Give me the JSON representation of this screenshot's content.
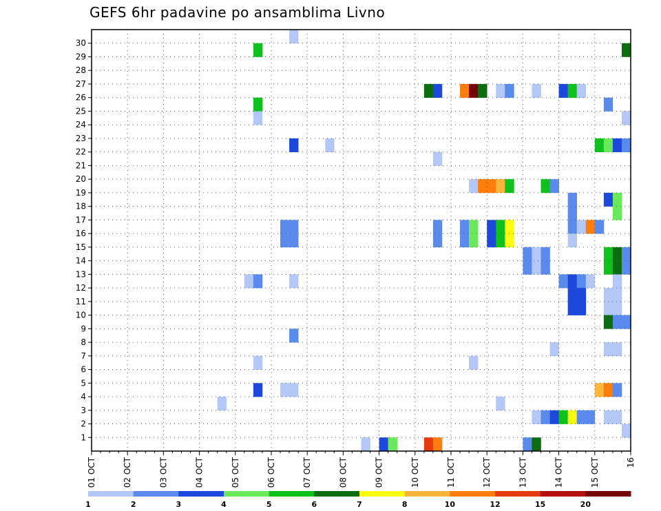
{
  "chart_data": {
    "type": "heatmap",
    "title": "GEFS 6hr padavine po ansamblima Livno",
    "x_tick_labels": [
      "01 OCT",
      "02 OCT",
      "03 OCT",
      "04 OCT",
      "05 OCT",
      "06 OCT",
      "07 OCT",
      "08 OCT",
      "09 OCT",
      "10 OCT",
      "11 OCT",
      "12 OCT",
      "13 OCT",
      "14 OCT",
      "15 OCT",
      "16"
    ],
    "y_tick_labels": [
      "1",
      "2",
      "3",
      "4",
      "5",
      "6",
      "7",
      "8",
      "9",
      "10",
      "11",
      "12",
      "13",
      "14",
      "15",
      "16",
      "17",
      "18",
      "19",
      "20",
      "21",
      "22",
      "23",
      "24",
      "25",
      "26",
      "27",
      "28",
      "29",
      "30"
    ],
    "time_steps": 60,
    "members": 31,
    "grid": true,
    "colorbar": {
      "tick_labels": [
        "1",
        "2",
        "3",
        "4",
        "5",
        "6",
        "7",
        "8",
        "10",
        "12",
        "15",
        "20"
      ],
      "colors": [
        "#b4c8f8",
        "#5a8aec",
        "#1c48dc",
        "#6ce85c",
        "#10c01c",
        "#0c6c10",
        "#fcfc10",
        "#fcb43c",
        "#fc7c0c",
        "#e43c0c",
        "#b41010",
        "#740404"
      ]
    },
    "cells": [
      [
        30,
        22,
        0
      ],
      [
        29,
        18,
        4
      ],
      [
        29,
        59,
        5
      ],
      [
        26,
        37,
        5
      ],
      [
        26,
        38,
        2
      ],
      [
        26,
        41,
        8
      ],
      [
        26,
        42,
        11
      ],
      [
        26,
        43,
        5
      ],
      [
        26,
        45,
        0
      ],
      [
        26,
        46,
        1
      ],
      [
        26,
        49,
        0
      ],
      [
        26,
        52,
        2
      ],
      [
        26,
        53,
        4
      ],
      [
        26,
        54,
        0
      ],
      [
        25,
        18,
        4
      ],
      [
        25,
        57,
        1
      ],
      [
        24,
        18,
        0
      ],
      [
        24,
        59,
        0
      ],
      [
        22,
        22,
        2
      ],
      [
        22,
        26,
        0
      ],
      [
        22,
        56,
        4
      ],
      [
        22,
        57,
        3
      ],
      [
        22,
        58,
        2
      ],
      [
        22,
        59,
        1
      ],
      [
        21,
        38,
        0
      ],
      [
        19,
        42,
        0
      ],
      [
        19,
        43,
        8
      ],
      [
        19,
        44,
        8
      ],
      [
        19,
        45,
        7
      ],
      [
        19,
        46,
        4
      ],
      [
        19,
        50,
        4
      ],
      [
        19,
        51,
        1
      ],
      [
        18,
        53,
        1
      ],
      [
        18,
        57,
        2
      ],
      [
        18,
        58,
        3
      ],
      [
        17,
        53,
        1
      ],
      [
        17,
        58,
        3
      ],
      [
        16,
        53,
        1
      ],
      [
        16,
        54,
        0
      ],
      [
        16,
        55,
        8
      ],
      [
        16,
        56,
        1
      ],
      [
        16,
        21,
        1
      ],
      [
        16,
        22,
        1
      ],
      [
        16,
        38,
        1
      ],
      [
        16,
        41,
        1
      ],
      [
        16,
        42,
        3
      ],
      [
        16,
        44,
        2
      ],
      [
        16,
        45,
        4
      ],
      [
        16,
        46,
        6
      ],
      [
        15,
        21,
        1
      ],
      [
        15,
        22,
        1
      ],
      [
        15,
        38,
        1
      ],
      [
        15,
        41,
        1
      ],
      [
        15,
        42,
        3
      ],
      [
        15,
        44,
        2
      ],
      [
        15,
        45,
        4
      ],
      [
        15,
        46,
        6
      ],
      [
        15,
        53,
        0
      ],
      [
        14,
        48,
        1
      ],
      [
        14,
        49,
        0
      ],
      [
        14,
        50,
        1
      ],
      [
        14,
        57,
        4
      ],
      [
        14,
        58,
        5
      ],
      [
        14,
        59,
        1
      ],
      [
        13,
        48,
        1
      ],
      [
        13,
        49,
        0
      ],
      [
        13,
        50,
        1
      ],
      [
        13,
        57,
        4
      ],
      [
        13,
        58,
        5
      ],
      [
        13,
        59,
        1
      ],
      [
        12,
        17,
        0
      ],
      [
        12,
        18,
        1
      ],
      [
        12,
        22,
        0
      ],
      [
        12,
        52,
        1
      ],
      [
        12,
        53,
        2
      ],
      [
        12,
        54,
        1
      ],
      [
        12,
        55,
        0
      ],
      [
        12,
        58,
        0
      ],
      [
        11,
        53,
        2
      ],
      [
        11,
        54,
        2
      ],
      [
        11,
        57,
        0
      ],
      [
        11,
        58,
        0
      ],
      [
        10,
        53,
        2
      ],
      [
        10,
        54,
        2
      ],
      [
        10,
        57,
        0
      ],
      [
        10,
        58,
        0
      ],
      [
        9,
        57,
        5
      ],
      [
        9,
        58,
        1
      ],
      [
        9,
        59,
        1
      ],
      [
        8,
        22,
        1
      ],
      [
        7,
        51,
        0
      ],
      [
        7,
        57,
        0
      ],
      [
        7,
        58,
        0
      ],
      [
        6,
        18,
        0
      ],
      [
        6,
        42,
        0
      ],
      [
        4,
        18,
        2
      ],
      [
        4,
        21,
        0
      ],
      [
        4,
        22,
        0
      ],
      [
        4,
        56,
        7
      ],
      [
        4,
        57,
        8
      ],
      [
        4,
        58,
        1
      ],
      [
        3,
        14,
        0
      ],
      [
        3,
        45,
        0
      ],
      [
        2,
        49,
        0
      ],
      [
        2,
        50,
        1
      ],
      [
        2,
        51,
        2
      ],
      [
        2,
        52,
        4
      ],
      [
        2,
        53,
        6
      ],
      [
        2,
        54,
        1
      ],
      [
        2,
        55,
        1
      ],
      [
        2,
        57,
        0
      ],
      [
        2,
        58,
        0
      ],
      [
        1,
        59,
        0
      ],
      [
        0,
        30,
        0
      ],
      [
        0,
        32,
        2
      ],
      [
        0,
        33,
        3
      ],
      [
        0,
        37,
        9
      ],
      [
        0,
        38,
        8
      ],
      [
        0,
        48,
        1
      ],
      [
        0,
        49,
        5
      ]
    ]
  }
}
